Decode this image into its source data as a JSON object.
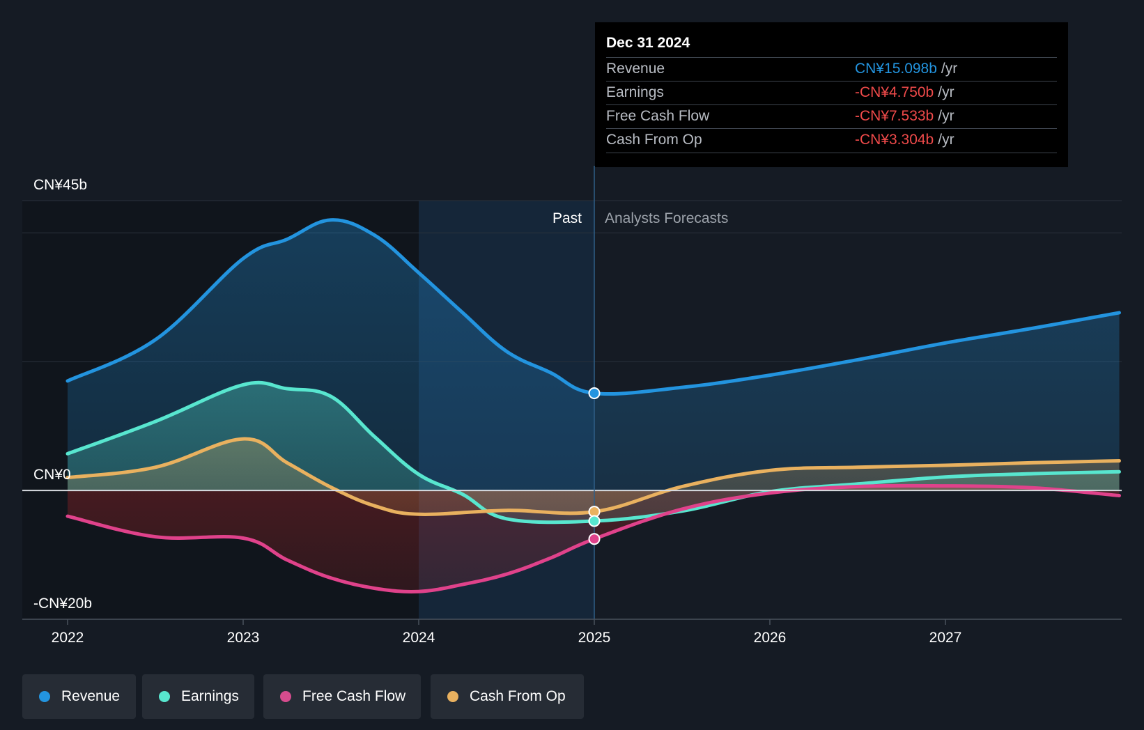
{
  "chart_data": {
    "type": "area",
    "title": "",
    "y_axis": {
      "ticks": [
        {
          "value": 45,
          "label": "CN¥45b"
        },
        {
          "value": 0,
          "label": "CN¥0"
        },
        {
          "value": -20,
          "label": "-CN¥20b"
        }
      ],
      "ylim": [
        -20,
        45
      ]
    },
    "x_axis": {
      "ticks": [
        {
          "value": 2022.0,
          "label": "2022"
        },
        {
          "value": 2023.0,
          "label": "2023"
        },
        {
          "value": 2024.0,
          "label": "2024"
        },
        {
          "value": 2025.0,
          "label": "2025"
        },
        {
          "value": 2026.0,
          "label": "2026"
        },
        {
          "value": 2027.0,
          "label": "2027"
        }
      ],
      "xlim": [
        2021.75,
        2027.99
      ]
    },
    "regions": {
      "past_label": "Past",
      "forecast_label": "Analysts Forecasts",
      "divider_x": 2025.0,
      "highlight_start_x": 2024.0
    },
    "series": [
      {
        "name": "Revenue",
        "color": "#2394df",
        "fill": "#2394df",
        "points": [
          [
            2022.0,
            17
          ],
          [
            2022.5,
            23.4
          ],
          [
            2023.0,
            36
          ],
          [
            2023.25,
            39
          ],
          [
            2023.5,
            42
          ],
          [
            2023.75,
            39.6
          ],
          [
            2024.0,
            33.8
          ],
          [
            2024.25,
            27.6
          ],
          [
            2024.5,
            21.6
          ],
          [
            2024.75,
            18.3
          ],
          [
            2025.0,
            15.098
          ],
          [
            2025.5,
            16
          ],
          [
            2026.0,
            17.9
          ],
          [
            2026.5,
            20.3
          ],
          [
            2027.0,
            22.9
          ],
          [
            2027.5,
            25.2
          ],
          [
            2027.99,
            27.6
          ]
        ]
      },
      {
        "name": "Earnings",
        "color": "#58e6cf",
        "fill": "#58e6cf",
        "points": [
          [
            2022.0,
            5.7
          ],
          [
            2022.5,
            10.7
          ],
          [
            2023.0,
            16.4
          ],
          [
            2023.25,
            15.8
          ],
          [
            2023.5,
            14.6
          ],
          [
            2023.75,
            8.3
          ],
          [
            2024.0,
            2.5
          ],
          [
            2024.25,
            -0.6
          ],
          [
            2024.5,
            -4.4
          ],
          [
            2025.0,
            -4.75
          ],
          [
            2025.5,
            -3.2
          ],
          [
            2026.0,
            -0.2
          ],
          [
            2026.5,
            1
          ],
          [
            2027.0,
            2.1
          ],
          [
            2027.5,
            2.6
          ],
          [
            2027.99,
            2.9
          ]
        ]
      },
      {
        "name": "Free Cash Flow",
        "color": "#e0428b",
        "fill": "#d32a2a",
        "points": [
          [
            2022.0,
            -4
          ],
          [
            2022.5,
            -7.2
          ],
          [
            2023.0,
            -7.4
          ],
          [
            2023.25,
            -10.8
          ],
          [
            2023.5,
            -13.6
          ],
          [
            2023.75,
            -15.2
          ],
          [
            2024.0,
            -15.7
          ],
          [
            2024.25,
            -14.6
          ],
          [
            2024.5,
            -13
          ],
          [
            2024.75,
            -10.5
          ],
          [
            2025.0,
            -7.533
          ],
          [
            2025.5,
            -2.9
          ],
          [
            2026.0,
            -0.4
          ],
          [
            2026.5,
            0.6
          ],
          [
            2027.0,
            0.7
          ],
          [
            2027.5,
            0.4
          ],
          [
            2027.99,
            -0.8
          ]
        ]
      },
      {
        "name": "Cash From Op",
        "color": "#e9b15f",
        "fill": "#e9b15f",
        "points": [
          [
            2022.0,
            2
          ],
          [
            2022.5,
            3.6
          ],
          [
            2023.0,
            8
          ],
          [
            2023.25,
            4.3
          ],
          [
            2023.5,
            0.5
          ],
          [
            2023.75,
            -2.4
          ],
          [
            2024.0,
            -3.7
          ],
          [
            2024.5,
            -3.1
          ],
          [
            2025.0,
            -3.304
          ],
          [
            2025.5,
            0.6
          ],
          [
            2026.0,
            3.1
          ],
          [
            2026.5,
            3.6
          ],
          [
            2027.0,
            3.9
          ],
          [
            2027.5,
            4.3
          ],
          [
            2027.99,
            4.6
          ]
        ]
      }
    ],
    "markers": [
      {
        "series": "Revenue",
        "x": 2025.0,
        "y": 15.098
      },
      {
        "series": "Cash From Op",
        "x": 2025.0,
        "y": -3.304
      },
      {
        "series": "Earnings",
        "x": 2025.0,
        "y": -4.75
      },
      {
        "series": "Free Cash Flow",
        "x": 2025.0,
        "y": -7.533
      }
    ]
  },
  "tooltip": {
    "date": "Dec 31 2024",
    "unit": "/yr",
    "rows": [
      {
        "label": "Revenue",
        "value": "CN¥15.098b",
        "color": "#2394df"
      },
      {
        "label": "Earnings",
        "value": "-CN¥4.750b",
        "color": "#ef4a4a"
      },
      {
        "label": "Free Cash Flow",
        "value": "-CN¥7.533b",
        "color": "#ef4a4a"
      },
      {
        "label": "Cash From Op",
        "value": "-CN¥3.304b",
        "color": "#ef4a4a"
      }
    ]
  },
  "legend": [
    {
      "label": "Revenue",
      "color": "#2394df"
    },
    {
      "label": "Earnings",
      "color": "#58e6cf"
    },
    {
      "label": "Free Cash Flow",
      "color": "#d64c8e"
    },
    {
      "label": "Cash From Op",
      "color": "#e9b15f"
    }
  ]
}
